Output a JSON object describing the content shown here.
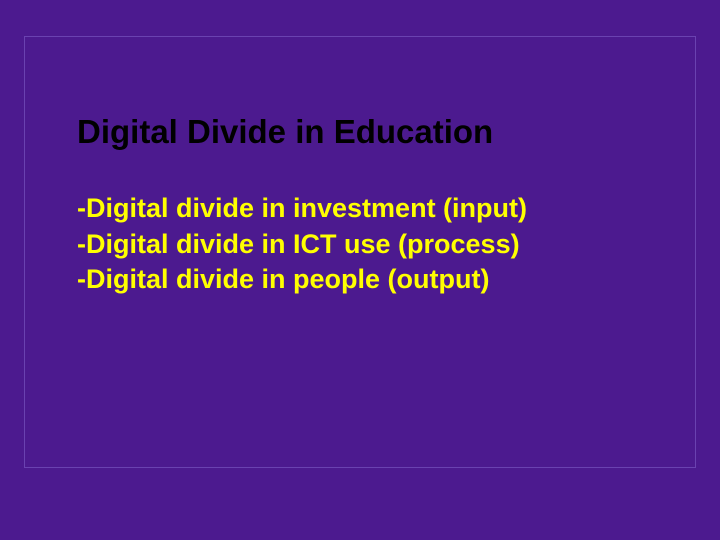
{
  "slide": {
    "background_color": "#4c1a8f",
    "frame_border_color": "#6a42b0",
    "title": {
      "text": "Digital Divide in Education",
      "color": "#000000",
      "fontsize": 33,
      "weight": "bold"
    },
    "bullets": [
      "-Digital divide in investment (input)",
      "-Digital divide in ICT use (process)",
      "-Digital divide in people (output)"
    ],
    "bullet_style": {
      "color": "#ffff00",
      "fontsize": 27,
      "weight": "bold"
    }
  }
}
